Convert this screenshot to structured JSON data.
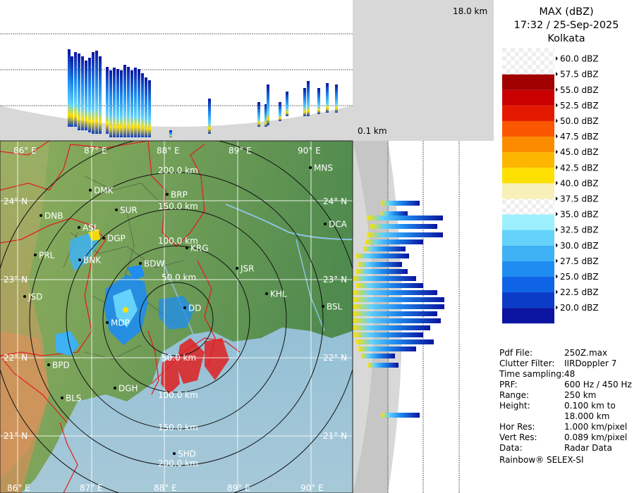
{
  "header": {
    "title": "MAX (dBZ)",
    "datetime": "17:32 / 25-Sep-2025",
    "station": "Kolkata"
  },
  "height_labels": {
    "top": "18.0 km",
    "bottom": "0.1 km"
  },
  "legend": [
    {
      "label": "60.0 dBZ",
      "color": "#ffffff"
    },
    {
      "label": "57.5 dBZ",
      "color": "#a00000"
    },
    {
      "label": "55.0 dBZ",
      "color": "#c80000"
    },
    {
      "label": "52.5 dBZ",
      "color": "#e41a00"
    },
    {
      "label": "50.0 dBZ",
      "color": "#fb5600"
    },
    {
      "label": "47.5 dBZ",
      "color": "#fb8c00"
    },
    {
      "label": "45.0 dBZ",
      "color": "#fcb600"
    },
    {
      "label": "42.5 dBZ",
      "color": "#fde000"
    },
    {
      "label": "40.0 dBZ",
      "color": "#f7f0b8"
    },
    {
      "label": "37.5 dBZ",
      "color": "#ffffff"
    },
    {
      "label": "35.0 dBZ",
      "color": "#9cf0fd"
    },
    {
      "label": "32.5 dBZ",
      "color": "#64d2fa"
    },
    {
      "label": "30.0 dBZ",
      "color": "#3eb1f5"
    },
    {
      "label": "27.5 dBZ",
      "color": "#1e8cf0"
    },
    {
      "label": "25.0 dBZ",
      "color": "#0f64e6"
    },
    {
      "label": "22.5 dBZ",
      "color": "#0a3cc8"
    },
    {
      "label": "20.0 dBZ",
      "color": "#0a14a0"
    }
  ],
  "info": [
    {
      "key": "Pdf File:",
      "value": "250Z.max"
    },
    {
      "key": "Clutter Filter:",
      "value": "IIRDoppler 7"
    },
    {
      "key": "Time sampling:",
      "value": "48"
    },
    {
      "key": "PRF:",
      "value": "600 Hz / 450 Hz"
    },
    {
      "key": "Range:",
      "value": "250 km"
    },
    {
      "key": "Height:",
      "value": "0.100 km to\n18.000 km"
    },
    {
      "key": "Hor Res:",
      "value": "1.000 km/pixel"
    },
    {
      "key": "Vert Res:",
      "value": "0.089 km/pixel"
    },
    {
      "key": "Data:",
      "value": "Radar Data"
    }
  ],
  "credit": "Rainbow® SELEX-SI",
  "map": {
    "lon_labels": [
      "86° E",
      "87° E",
      "88° E",
      "89° E",
      "90° E"
    ],
    "lat_labels": [
      "24° N",
      "23° N",
      "22° N",
      "21° N"
    ],
    "range_rings": [
      "50.0 km",
      "100.0 km",
      "150.0 km",
      "200.0 km"
    ],
    "stations": [
      "MNS",
      "DMK",
      "BRP",
      "DNB",
      "SUR",
      "DCA",
      "ASL",
      "DGP",
      "KRG",
      "PRL",
      "BNK",
      "BDW",
      "JSR",
      "KHL",
      "JSD",
      "BSL",
      "MDP",
      "DD",
      "BPD",
      "DGH",
      "BLS",
      "SHD"
    ]
  }
}
